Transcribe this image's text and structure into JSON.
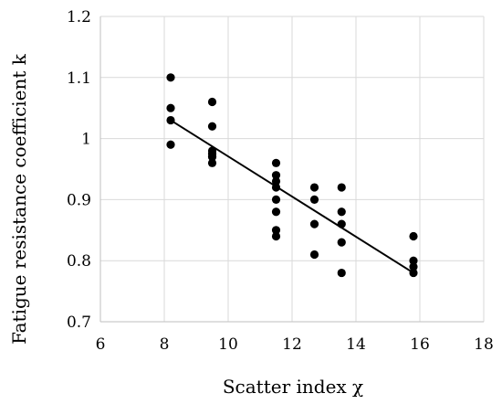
{
  "chart_data": {
    "type": "scatter",
    "xlabel": "Scatter index χ",
    "ylabel": "Fatigue resistance coefficient k",
    "xlim": [
      6,
      18
    ],
    "ylim": [
      0.7,
      1.2
    ],
    "xticks": [
      6,
      8,
      10,
      12,
      14,
      16,
      18
    ],
    "yticks": [
      0.7,
      0.8,
      0.9,
      1,
      1.1,
      1.2
    ],
    "xtick_labels": [
      "6",
      "8",
      "10",
      "12",
      "14",
      "16",
      "18"
    ],
    "ytick_labels": [
      "0.7",
      "0.8",
      "0.9",
      "1",
      "1.1",
      "1.2"
    ],
    "grid": "vertical and horizontal",
    "legend": "none",
    "marker_color": "#000000",
    "series": [
      {
        "points": [
          [
            8.2,
            1.1
          ],
          [
            8.2,
            1.05
          ],
          [
            8.2,
            1.03
          ],
          [
            8.2,
            0.99
          ],
          [
            9.5,
            1.06
          ],
          [
            9.5,
            1.02
          ],
          [
            9.5,
            0.98
          ],
          [
            9.5,
            0.975
          ],
          [
            9.5,
            0.97
          ],
          [
            9.5,
            0.96
          ],
          [
            11.5,
            0.96
          ],
          [
            11.5,
            0.94
          ],
          [
            11.5,
            0.93
          ],
          [
            11.5,
            0.92
          ],
          [
            11.5,
            0.9
          ],
          [
            11.5,
            0.88
          ],
          [
            11.5,
            0.85
          ],
          [
            11.5,
            0.84
          ],
          [
            12.7,
            0.92
          ],
          [
            12.7,
            0.9
          ],
          [
            12.7,
            0.86
          ],
          [
            12.7,
            0.81
          ],
          [
            13.55,
            0.92
          ],
          [
            13.55,
            0.88
          ],
          [
            13.55,
            0.86
          ],
          [
            13.55,
            0.83
          ],
          [
            13.55,
            0.78
          ],
          [
            15.8,
            0.84
          ],
          [
            15.8,
            0.8
          ],
          [
            15.8,
            0.79
          ],
          [
            15.8,
            0.78
          ]
        ]
      }
    ],
    "trendline": {
      "x": [
        8.2,
        15.8
      ],
      "y": [
        1.03,
        0.78
      ]
    }
  }
}
